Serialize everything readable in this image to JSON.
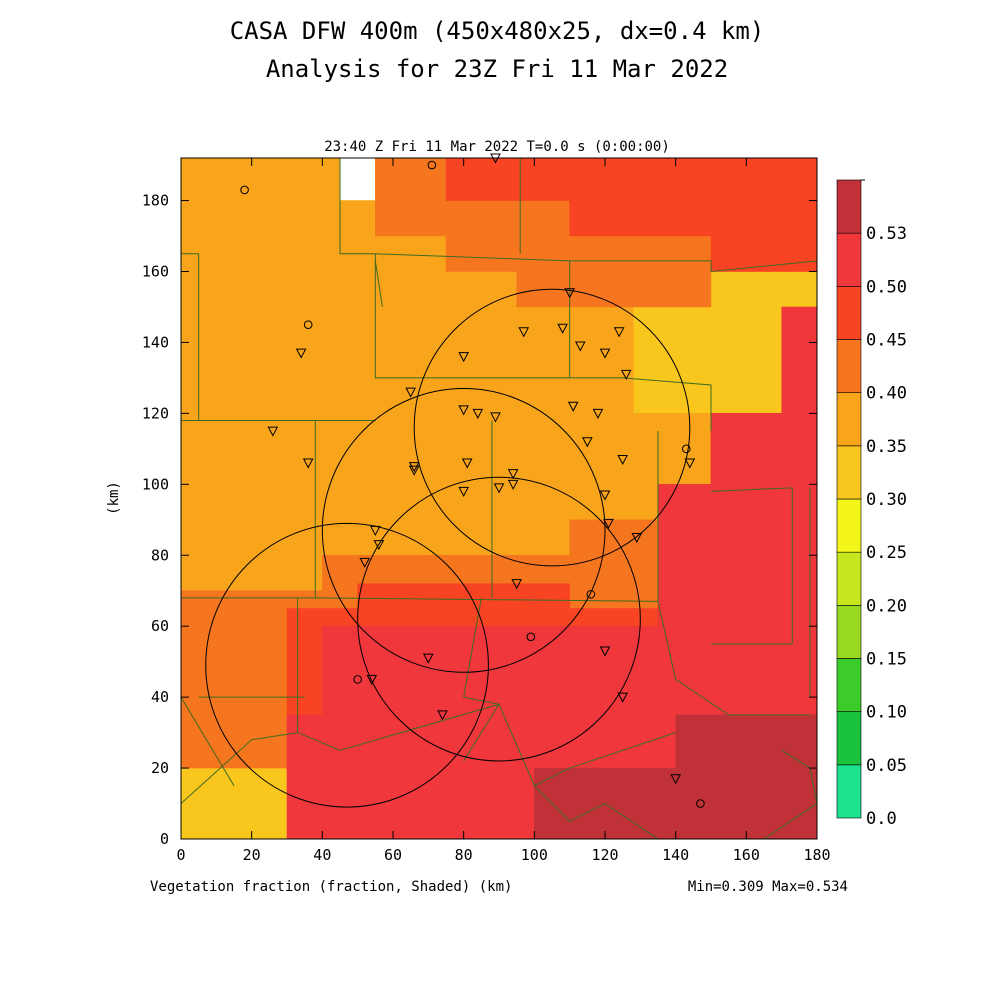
{
  "figure": {
    "title_line1": "CASA DFW 400m (450x480x25, dx=0.4 km)",
    "title_line2": "Analysis for 23Z Fri 11 Mar 2022",
    "subtitle": "23:40 Z Fri 11 Mar 2022   T=0.0 s (0:00:00)",
    "footer_left": "Vegetation fraction (fraction, Shaded)  (km)",
    "footer_right": "Min=0.309 Max=0.534",
    "ylabel": "(km)"
  },
  "chart_data": {
    "type": "heatmap",
    "title": "CASA DFW 400m (450x480x25, dx=0.4 km)",
    "subtitle": "Analysis for 23Z Fri 11 Mar 2022",
    "field": "Vegetation fraction (fraction, Shaded)",
    "xlabel": "(km)",
    "ylabel": "(km)",
    "xlim": [
      0,
      180
    ],
    "ylim": [
      0,
      192
    ],
    "xticks": [
      0,
      20,
      40,
      60,
      80,
      100,
      120,
      140,
      160,
      180
    ],
    "yticks": [
      0,
      20,
      40,
      60,
      80,
      100,
      120,
      140,
      160,
      180
    ],
    "min": 0.309,
    "max": 0.534,
    "colorbar": {
      "levels": [
        "0.0",
        "0.05",
        "0.10",
        "0.15",
        "0.20",
        "0.25",
        "0.30",
        "0.35",
        "0.40",
        "0.45",
        "0.50",
        "0.53"
      ],
      "colors": [
        "#1de38f",
        "#1bc23e",
        "#3bcc2a",
        "#98d821",
        "#c8e61d",
        "#f4f51a",
        "#f8c61c",
        "#f8a51b",
        "#f6761f",
        "#f94423",
        "#f0373c",
        "#c03238"
      ]
    },
    "regions": [
      {
        "class": 6,
        "polygon": [
          [
            0,
            192
          ],
          [
            45,
            192
          ],
          [
            45,
            180
          ],
          [
            55,
            180
          ],
          [
            55,
            192
          ],
          [
            180,
            192
          ],
          [
            180,
            0
          ],
          [
            0,
            0
          ]
        ]
      },
      {
        "class": 7,
        "polygon": [
          [
            0,
            192
          ],
          [
            45,
            192
          ],
          [
            45,
            180
          ],
          [
            55,
            180
          ],
          [
            55,
            170
          ],
          [
            75,
            170
          ],
          [
            75,
            160
          ],
          [
            95,
            160
          ],
          [
            95,
            150
          ],
          [
            128,
            150
          ],
          [
            128,
            120
          ],
          [
            150,
            120
          ],
          [
            150,
            100
          ],
          [
            135,
            100
          ],
          [
            135,
            90
          ],
          [
            110,
            90
          ],
          [
            110,
            80
          ],
          [
            40,
            80
          ],
          [
            40,
            70
          ],
          [
            0,
            70
          ]
        ]
      },
      {
        "class": 8,
        "polygon": [
          [
            55,
            192
          ],
          [
            180,
            192
          ],
          [
            180,
            160
          ],
          [
            150,
            160
          ],
          [
            150,
            150
          ],
          [
            128,
            150
          ],
          [
            95,
            150
          ],
          [
            95,
            160
          ],
          [
            75,
            160
          ],
          [
            75,
            170
          ],
          [
            55,
            170
          ],
          [
            55,
            180
          ]
        ]
      },
      {
        "class": 8,
        "polygon": [
          [
            0,
            70
          ],
          [
            40,
            70
          ],
          [
            40,
            80
          ],
          [
            110,
            80
          ],
          [
            110,
            90
          ],
          [
            135,
            90
          ],
          [
            135,
            100
          ],
          [
            150,
            100
          ],
          [
            150,
            120
          ],
          [
            170,
            120
          ],
          [
            170,
            35
          ],
          [
            30,
            35
          ],
          [
            30,
            20
          ],
          [
            0,
            20
          ]
        ]
      },
      {
        "class": 9,
        "polygon": [
          [
            75,
            192
          ],
          [
            180,
            192
          ],
          [
            180,
            160
          ],
          [
            150,
            160
          ],
          [
            150,
            170
          ],
          [
            110,
            170
          ],
          [
            110,
            180
          ],
          [
            75,
            180
          ]
        ]
      },
      {
        "class": 9,
        "polygon": [
          [
            30,
            65
          ],
          [
            30,
            35
          ],
          [
            170,
            35
          ],
          [
            170,
            120
          ],
          [
            150,
            120
          ],
          [
            150,
            100
          ],
          [
            135,
            100
          ],
          [
            135,
            65
          ],
          [
            110,
            65
          ],
          [
            110,
            72
          ],
          [
            50,
            72
          ],
          [
            50,
            65
          ]
        ]
      },
      {
        "class": 10,
        "polygon": [
          [
            40,
            60
          ],
          [
            135,
            60
          ],
          [
            135,
            100
          ],
          [
            150,
            100
          ],
          [
            150,
            120
          ],
          [
            170,
            120
          ],
          [
            170,
            150
          ],
          [
            180,
            150
          ],
          [
            180,
            0
          ],
          [
            30,
            0
          ],
          [
            30,
            35
          ],
          [
            40,
            35
          ]
        ]
      },
      {
        "class": 11,
        "polygon": [
          [
            100,
            20
          ],
          [
            140,
            20
          ],
          [
            140,
            35
          ],
          [
            180,
            35
          ],
          [
            180,
            0
          ],
          [
            100,
            0
          ]
        ]
      }
    ],
    "boundaries": [
      [
        [
          0,
          165
        ],
        [
          5,
          165
        ],
        [
          5,
          118
        ],
        [
          40,
          118
        ]
      ],
      [
        [
          0,
          118
        ],
        [
          55,
          118
        ]
      ],
      [
        [
          45,
          192
        ],
        [
          45,
          165
        ],
        [
          55,
          165
        ],
        [
          55,
          130
        ],
        [
          110,
          130
        ],
        [
          125,
          130
        ],
        [
          150,
          128
        ],
        [
          150,
          115
        ]
      ],
      [
        [
          55,
          165
        ],
        [
          110,
          163
        ],
        [
          150,
          163
        ],
        [
          150,
          160
        ],
        [
          180,
          163
        ]
      ],
      [
        [
          96,
          192
        ],
        [
          96,
          165
        ]
      ],
      [
        [
          110,
          163
        ],
        [
          110,
          130
        ]
      ],
      [
        [
          55,
          163
        ],
        [
          57,
          150
        ]
      ],
      [
        [
          38,
          118
        ],
        [
          38,
          68
        ],
        [
          0,
          68
        ]
      ],
      [
        [
          88,
          118
        ],
        [
          88,
          68
        ]
      ],
      [
        [
          38,
          68
        ],
        [
          135,
          67
        ],
        [
          135,
          115
        ]
      ],
      [
        [
          135,
          67
        ],
        [
          140,
          45
        ],
        [
          155,
          35
        ],
        [
          178,
          35
        ]
      ],
      [
        [
          150,
          98
        ],
        [
          173,
          99
        ],
        [
          173,
          55
        ],
        [
          150,
          55
        ]
      ],
      [
        [
          178,
          99
        ],
        [
          178,
          40
        ]
      ],
      [
        [
          33,
          68
        ],
        [
          33,
          30
        ],
        [
          45,
          25
        ],
        [
          90,
          38
        ],
        [
          100,
          15
        ],
        [
          110,
          20
        ],
        [
          140,
          30
        ]
      ],
      [
        [
          85,
          68
        ],
        [
          80,
          40
        ],
        [
          90,
          38
        ],
        [
          80,
          22
        ]
      ],
      [
        [
          5,
          40
        ],
        [
          35,
          40
        ]
      ],
      [
        [
          0,
          10
        ],
        [
          20,
          28
        ],
        [
          33,
          30
        ]
      ],
      [
        [
          0,
          40
        ],
        [
          15,
          15
        ]
      ],
      [
        [
          100,
          15
        ],
        [
          110,
          5
        ],
        [
          120,
          10
        ],
        [
          135,
          0
        ]
      ],
      [
        [
          170,
          25
        ],
        [
          178,
          20
        ],
        [
          180,
          10
        ]
      ],
      [
        [
          165,
          0
        ],
        [
          180,
          10
        ]
      ]
    ],
    "circles": [
      {
        "center": [
          105,
          116
        ],
        "radius": 39
      },
      {
        "center": [
          80,
          87
        ],
        "radius": 40
      },
      {
        "center": [
          90,
          62
        ],
        "radius": 40
      },
      {
        "center": [
          47,
          49
        ],
        "radius": 40
      }
    ],
    "radars": [
      [
        110,
        154
      ],
      [
        97,
        143
      ],
      [
        108,
        144
      ],
      [
        113,
        139
      ],
      [
        124,
        143
      ],
      [
        120,
        137
      ],
      [
        126,
        131
      ],
      [
        80,
        136
      ],
      [
        65,
        126
      ],
      [
        80,
        121
      ],
      [
        84,
        120
      ],
      [
        89,
        119
      ],
      [
        111,
        122
      ],
      [
        118,
        120
      ],
      [
        34,
        137
      ],
      [
        26,
        115
      ],
      [
        36,
        106
      ],
      [
        66,
        105
      ],
      [
        66,
        104
      ],
      [
        81,
        106
      ],
      [
        115,
        112
      ],
      [
        125,
        107
      ],
      [
        144,
        106
      ],
      [
        94,
        103
      ],
      [
        90,
        99
      ],
      [
        94,
        100
      ],
      [
        80,
        98
      ],
      [
        120,
        97
      ],
      [
        121,
        89
      ],
      [
        129,
        85
      ],
      [
        55,
        87
      ],
      [
        56,
        83
      ],
      [
        52,
        78
      ],
      [
        95,
        72
      ],
      [
        70,
        51
      ],
      [
        120,
        53
      ],
      [
        54,
        45
      ],
      [
        74,
        35
      ],
      [
        125,
        40
      ],
      [
        140,
        17
      ],
      [
        89,
        192
      ]
    ],
    "sites": [
      [
        18,
        183
      ],
      [
        36,
        145
      ],
      [
        71,
        190
      ],
      [
        143,
        110
      ],
      [
        116,
        69
      ],
      [
        99,
        57
      ],
      [
        50,
        45
      ],
      [
        147,
        10
      ]
    ]
  }
}
